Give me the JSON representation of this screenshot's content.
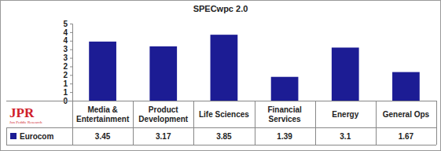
{
  "chart_data": {
    "type": "bar",
    "title": "SPECwpc 2.0",
    "categories": [
      "Media & Entertainment",
      "Product Development",
      "Life Sciences",
      "Financial Services",
      "Energy",
      "General Ops"
    ],
    "series": [
      {
        "name": "Eurocom",
        "color": "#1c1c94",
        "values": [
          3.45,
          3.17,
          3.85,
          1.39,
          3.1,
          1.67
        ]
      }
    ],
    "ylim": [
      0,
      4.5
    ],
    "yticks": [
      {
        "value": 0,
        "label": "0"
      },
      {
        "value": 0.5,
        "label": "1"
      },
      {
        "value": 1,
        "label": "1"
      },
      {
        "value": 1.5,
        "label": "2"
      },
      {
        "value": 2,
        "label": "2"
      },
      {
        "value": 2.5,
        "label": "3"
      },
      {
        "value": 3,
        "label": "3"
      },
      {
        "value": 3.5,
        "label": "4"
      },
      {
        "value": 4,
        "label": "4"
      },
      {
        "value": 4.5,
        "label": "5"
      }
    ],
    "grid": false,
    "data_labels": true,
    "annotations": [
      "JPR",
      "Jon Peddie Research"
    ]
  }
}
